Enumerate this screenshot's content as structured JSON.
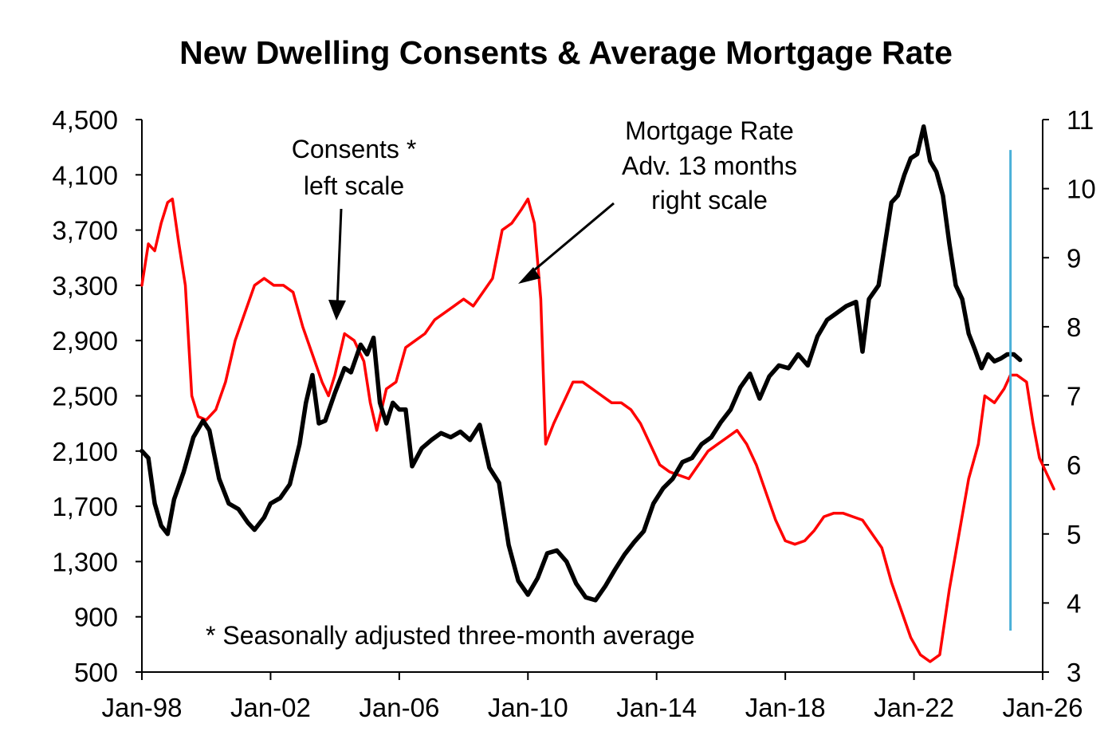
{
  "chart_data": {
    "type": "line",
    "title": "New Dwelling Consents & Average Mortgage Rate",
    "x_ticks": [
      "Jan-98",
      "Jan-02",
      "Jan-06",
      "Jan-10",
      "Jan-14",
      "Jan-18",
      "Jan-22",
      "Jan-26"
    ],
    "x_range": [
      1998.0,
      2026.0
    ],
    "y_left": {
      "range": [
        500,
        4500
      ],
      "ticks": [
        "4,500",
        "4,100",
        "3,700",
        "3,300",
        "2,900",
        "2,500",
        "2,100",
        "1,700",
        "1,300",
        "900",
        "500"
      ]
    },
    "y_right": {
      "range": [
        3,
        11
      ],
      "ticks": [
        "11",
        "10",
        "9",
        "8",
        "7",
        "6",
        "5",
        "4",
        "3"
      ]
    },
    "grid": false,
    "legend": "none",
    "series": [
      {
        "color": "#000000",
        "axis": "left",
        "points": [
          [
            1998.0,
            2100
          ],
          [
            1998.2,
            2050
          ],
          [
            1998.4,
            1720
          ],
          [
            1998.6,
            1560
          ],
          [
            1998.8,
            1500
          ],
          [
            1999.0,
            1750
          ],
          [
            1999.3,
            1950
          ],
          [
            1999.6,
            2200
          ],
          [
            1999.9,
            2320
          ],
          [
            2000.1,
            2250
          ],
          [
            2000.4,
            1900
          ],
          [
            2000.7,
            1720
          ],
          [
            2001.0,
            1680
          ],
          [
            2001.3,
            1580
          ],
          [
            2001.5,
            1530
          ],
          [
            2001.8,
            1620
          ],
          [
            2002.0,
            1720
          ],
          [
            2002.3,
            1760
          ],
          [
            2002.6,
            1860
          ],
          [
            2002.9,
            2150
          ],
          [
            2003.1,
            2450
          ],
          [
            2003.3,
            2650
          ],
          [
            2003.5,
            2300
          ],
          [
            2003.7,
            2320
          ],
          [
            2004.0,
            2520
          ],
          [
            2004.3,
            2700
          ],
          [
            2004.5,
            2670
          ],
          [
            2004.8,
            2870
          ],
          [
            2005.0,
            2800
          ],
          [
            2005.2,
            2920
          ],
          [
            2005.4,
            2450
          ],
          [
            2005.6,
            2300
          ],
          [
            2005.8,
            2450
          ],
          [
            2006.0,
            2400
          ],
          [
            2006.2,
            2400
          ],
          [
            2006.4,
            1990
          ],
          [
            2006.7,
            2120
          ],
          [
            2007.0,
            2180
          ],
          [
            2007.3,
            2230
          ],
          [
            2007.6,
            2200
          ],
          [
            2007.9,
            2240
          ],
          [
            2008.2,
            2180
          ],
          [
            2008.5,
            2290
          ],
          [
            2008.8,
            1980
          ],
          [
            2009.1,
            1870
          ],
          [
            2009.4,
            1420
          ],
          [
            2009.7,
            1160
          ],
          [
            2010.0,
            1060
          ],
          [
            2010.3,
            1180
          ],
          [
            2010.6,
            1360
          ],
          [
            2010.9,
            1380
          ],
          [
            2011.2,
            1300
          ],
          [
            2011.5,
            1140
          ],
          [
            2011.8,
            1040
          ],
          [
            2012.1,
            1020
          ],
          [
            2012.4,
            1120
          ],
          [
            2012.7,
            1240
          ],
          [
            2013.0,
            1350
          ],
          [
            2013.3,
            1440
          ],
          [
            2013.6,
            1520
          ],
          [
            2013.9,
            1720
          ],
          [
            2014.2,
            1830
          ],
          [
            2014.5,
            1900
          ],
          [
            2014.8,
            2020
          ],
          [
            2015.1,
            2050
          ],
          [
            2015.4,
            2150
          ],
          [
            2015.7,
            2200
          ],
          [
            2016.0,
            2310
          ],
          [
            2016.3,
            2400
          ],
          [
            2016.6,
            2560
          ],
          [
            2016.9,
            2660
          ],
          [
            2017.2,
            2480
          ],
          [
            2017.5,
            2640
          ],
          [
            2017.8,
            2720
          ],
          [
            2018.1,
            2700
          ],
          [
            2018.4,
            2800
          ],
          [
            2018.7,
            2720
          ],
          [
            2019.0,
            2930
          ],
          [
            2019.3,
            3050
          ],
          [
            2019.6,
            3100
          ],
          [
            2019.9,
            3150
          ],
          [
            2020.2,
            3180
          ],
          [
            2020.4,
            2820
          ],
          [
            2020.6,
            3200
          ],
          [
            2020.9,
            3300
          ],
          [
            2021.1,
            3600
          ],
          [
            2021.3,
            3900
          ],
          [
            2021.5,
            3950
          ],
          [
            2021.7,
            4100
          ],
          [
            2021.9,
            4220
          ],
          [
            2022.1,
            4250
          ],
          [
            2022.3,
            4450
          ],
          [
            2022.5,
            4200
          ],
          [
            2022.7,
            4120
          ],
          [
            2022.9,
            3950
          ],
          [
            2023.1,
            3600
          ],
          [
            2023.3,
            3300
          ],
          [
            2023.5,
            3200
          ],
          [
            2023.7,
            2950
          ],
          [
            2023.9,
            2830
          ],
          [
            2024.1,
            2700
          ],
          [
            2024.3,
            2800
          ],
          [
            2024.5,
            2750
          ],
          [
            2024.7,
            2770
          ],
          [
            2024.9,
            2800
          ],
          [
            2025.1,
            2800
          ],
          [
            2025.3,
            2760
          ]
        ]
      },
      {
        "color": "#ff0000",
        "axis": "right",
        "points": [
          [
            1998.0,
            8.6
          ],
          [
            1998.2,
            9.2
          ],
          [
            1998.4,
            9.1
          ],
          [
            1998.6,
            9.5
          ],
          [
            1998.8,
            9.8
          ],
          [
            1998.95,
            9.85
          ],
          [
            1999.15,
            9.2
          ],
          [
            1999.35,
            8.6
          ],
          [
            1999.55,
            7.0
          ],
          [
            1999.75,
            6.7
          ],
          [
            2000.0,
            6.65
          ],
          [
            2000.3,
            6.8
          ],
          [
            2000.6,
            7.2
          ],
          [
            2000.9,
            7.8
          ],
          [
            2001.2,
            8.2
          ],
          [
            2001.5,
            8.6
          ],
          [
            2001.8,
            8.7
          ],
          [
            2002.1,
            8.6
          ],
          [
            2002.4,
            8.6
          ],
          [
            2002.7,
            8.5
          ],
          [
            2003.0,
            8.0
          ],
          [
            2003.3,
            7.6
          ],
          [
            2003.6,
            7.2
          ],
          [
            2003.8,
            7.0
          ],
          [
            2004.0,
            7.3
          ],
          [
            2004.3,
            7.9
          ],
          [
            2004.6,
            7.8
          ],
          [
            2004.9,
            7.5
          ],
          [
            2005.1,
            6.9
          ],
          [
            2005.3,
            6.5
          ],
          [
            2005.6,
            7.1
          ],
          [
            2005.9,
            7.2
          ],
          [
            2006.2,
            7.7
          ],
          [
            2006.5,
            7.8
          ],
          [
            2006.8,
            7.9
          ],
          [
            2007.1,
            8.1
          ],
          [
            2007.4,
            8.2
          ],
          [
            2007.7,
            8.3
          ],
          [
            2008.0,
            8.4
          ],
          [
            2008.3,
            8.3
          ],
          [
            2008.6,
            8.5
          ],
          [
            2008.9,
            8.7
          ],
          [
            2009.2,
            9.4
          ],
          [
            2009.5,
            9.5
          ],
          [
            2009.8,
            9.7
          ],
          [
            2010.0,
            9.85
          ],
          [
            2010.2,
            9.5
          ],
          [
            2010.4,
            8.4
          ],
          [
            2010.55,
            6.3
          ],
          [
            2010.8,
            6.6
          ],
          [
            2011.1,
            6.9
          ],
          [
            2011.4,
            7.2
          ],
          [
            2011.7,
            7.2
          ],
          [
            2012.0,
            7.1
          ],
          [
            2012.3,
            7.0
          ],
          [
            2012.6,
            6.9
          ],
          [
            2012.9,
            6.9
          ],
          [
            2013.2,
            6.8
          ],
          [
            2013.5,
            6.6
          ],
          [
            2013.8,
            6.3
          ],
          [
            2014.1,
            6.0
          ],
          [
            2014.4,
            5.9
          ],
          [
            2014.7,
            5.85
          ],
          [
            2015.0,
            5.8
          ],
          [
            2015.3,
            6.0
          ],
          [
            2015.6,
            6.2
          ],
          [
            2015.9,
            6.3
          ],
          [
            2016.2,
            6.4
          ],
          [
            2016.5,
            6.5
          ],
          [
            2016.8,
            6.3
          ],
          [
            2017.1,
            6.0
          ],
          [
            2017.4,
            5.6
          ],
          [
            2017.7,
            5.2
          ],
          [
            2018.0,
            4.9
          ],
          [
            2018.3,
            4.85
          ],
          [
            2018.6,
            4.9
          ],
          [
            2018.9,
            5.05
          ],
          [
            2019.2,
            5.25
          ],
          [
            2019.5,
            5.3
          ],
          [
            2019.8,
            5.3
          ],
          [
            2020.1,
            5.25
          ],
          [
            2020.4,
            5.2
          ],
          [
            2020.7,
            5.0
          ],
          [
            2021.0,
            4.8
          ],
          [
            2021.3,
            4.3
          ],
          [
            2021.6,
            3.9
          ],
          [
            2021.9,
            3.5
          ],
          [
            2022.2,
            3.25
          ],
          [
            2022.5,
            3.15
          ],
          [
            2022.8,
            3.25
          ],
          [
            2023.1,
            4.2
          ],
          [
            2023.4,
            5.0
          ],
          [
            2023.7,
            5.8
          ],
          [
            2024.0,
            6.3
          ],
          [
            2024.2,
            7.0
          ],
          [
            2024.5,
            6.9
          ],
          [
            2024.8,
            7.1
          ],
          [
            2025.0,
            7.3
          ],
          [
            2025.2,
            7.3
          ],
          [
            2025.5,
            7.2
          ],
          [
            2025.7,
            6.6
          ],
          [
            2025.9,
            6.1
          ],
          [
            2026.1,
            5.9
          ],
          [
            2026.35,
            5.65
          ]
        ]
      }
    ],
    "vline": {
      "x": 2025.0,
      "y_left": [
        800,
        4280
      ],
      "color": "#4ab0d8"
    },
    "annotations": {
      "consents": [
        "Consents *",
        "left scale"
      ],
      "mortgage": [
        "Mortgage Rate",
        "Adv. 13 months",
        "right scale"
      ],
      "footnote": "* Seasonally adjusted three-month average"
    }
  }
}
